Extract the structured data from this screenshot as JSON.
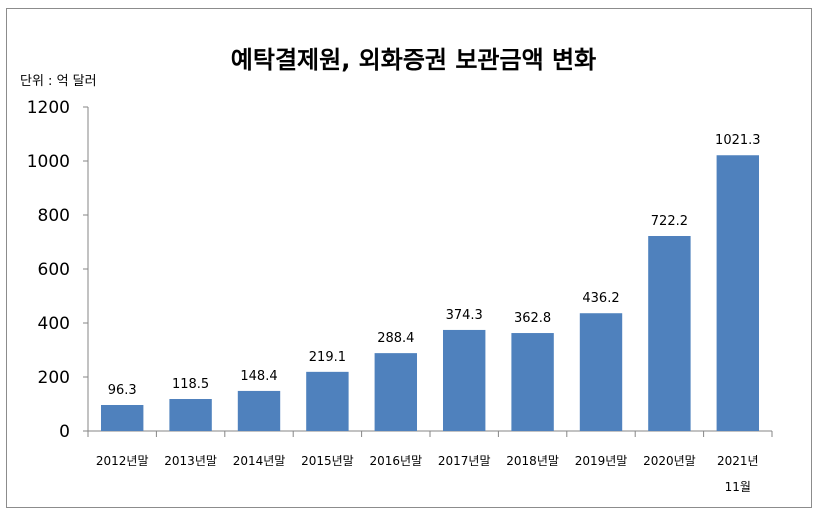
{
  "chart_data": {
    "type": "bar",
    "title": "예탁결제원, 외화증권 보관금액 변화",
    "unit_label": "단위 : 억 달러",
    "xlabel": "",
    "ylabel": "",
    "ylim": [
      0,
      1200
    ],
    "yticks": [
      "0",
      "200",
      "400",
      "600",
      "800",
      "1000",
      "1200"
    ],
    "categories": [
      [
        "2012년말"
      ],
      [
        "2013년말"
      ],
      [
        "2014년말"
      ],
      [
        "2015년말"
      ],
      [
        "2016년말"
      ],
      [
        "2017년말"
      ],
      [
        "2018년말"
      ],
      [
        "2019년말"
      ],
      [
        "2020년말"
      ],
      [
        "2021년",
        "11월"
      ]
    ],
    "values": [
      96.3,
      118.5,
      148.4,
      219.1,
      288.4,
      374.3,
      362.8,
      436.2,
      722.2,
      1021.3
    ],
    "value_labels": [
      "96.3",
      "118.5",
      "148.4",
      "219.1",
      "288.4",
      "374.3",
      "362.8",
      "436.2",
      "722.2",
      "1021.3"
    ],
    "bar_color": "#4f81bd",
    "grid": false,
    "legend": "none"
  }
}
